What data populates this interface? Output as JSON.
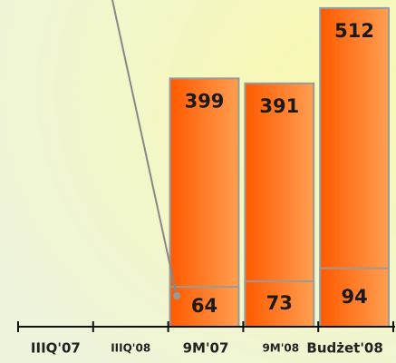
{
  "chart_data": {
    "type": "bar",
    "categories": [
      "IIIQ'07",
      "IIIQ'08",
      "9M'07",
      "9M'08",
      "Budżet'08"
    ],
    "series": [
      {
        "color": "#ff7a1a",
        "values": [
          null,
          null,
          399,
          391,
          512
        ]
      },
      {
        "color": "#ff7a1a",
        "values": [
          null,
          null,
          64,
          73,
          94
        ]
      }
    ],
    "ylim": [
      0,
      525
    ]
  }
}
